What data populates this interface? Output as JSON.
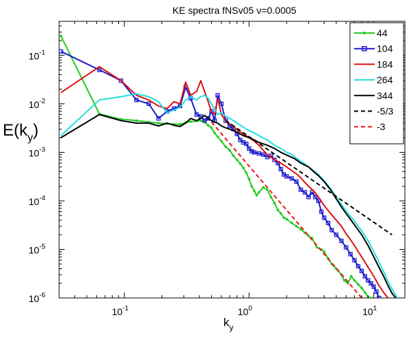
{
  "chart_data": {
    "type": "line",
    "title": "KE spectra fNSv05  ν=0.0005",
    "xlabel": "k",
    "xlabel_sub": "y",
    "ylabel": "E(k",
    "ylabel_sub": "y",
    "ylabel_tail": ")",
    "xscale": "log",
    "yscale": "log",
    "xlim": [
      0.03,
      17.78
    ],
    "ylim": [
      1e-06,
      0.5
    ],
    "xticks": [
      {
        "value": 0.1,
        "base": "10",
        "exp": "-1"
      },
      {
        "value": 1,
        "base": "10",
        "exp": "0"
      },
      {
        "value": 10,
        "base": "10",
        "exp": "1"
      }
    ],
    "yticks": [
      {
        "value": 1e-06,
        "base": "10",
        "exp": "-6"
      },
      {
        "value": 1e-05,
        "base": "10",
        "exp": "-5"
      },
      {
        "value": 0.0001,
        "base": "10",
        "exp": "-4"
      },
      {
        "value": 0.001,
        "base": "10",
        "exp": "-3"
      },
      {
        "value": 0.01,
        "base": "10",
        "exp": "-2"
      },
      {
        "value": 0.1,
        "base": "10",
        "exp": "-1"
      }
    ],
    "grid": false,
    "legend_position": "top-right",
    "series": [
      {
        "name": "44",
        "color": "#22cc22",
        "dash": "",
        "marker": "dot",
        "points": [
          [
            0.031,
            0.25
          ],
          [
            0.063,
            0.0062
          ],
          [
            0.094,
            0.0048
          ],
          [
            0.125,
            0.0045
          ],
          [
            0.157,
            0.0042
          ],
          [
            0.188,
            0.004
          ],
          [
            0.22,
            0.0039
          ],
          [
            0.25,
            0.0038
          ],
          [
            0.28,
            0.0038
          ],
          [
            0.31,
            0.0041
          ],
          [
            0.34,
            0.0043
          ],
          [
            0.38,
            0.0044
          ],
          [
            0.41,
            0.0045
          ],
          [
            0.44,
            0.0042
          ],
          [
            0.47,
            0.0036
          ],
          [
            0.5,
            0.0032
          ],
          [
            0.53,
            0.0025
          ],
          [
            0.56,
            0.0021
          ],
          [
            0.6,
            0.0017
          ],
          [
            0.65,
            0.0013
          ],
          [
            0.7,
            0.0011
          ],
          [
            0.75,
            0.00085
          ],
          [
            0.8,
            0.0007
          ],
          [
            0.85,
            0.00058
          ],
          [
            0.9,
            0.00048
          ],
          [
            0.95,
            0.00038
          ],
          [
            1.0,
            0.00028
          ],
          [
            1.05,
            0.0002
          ],
          [
            1.1,
            0.00016
          ],
          [
            1.15,
            0.00013
          ],
          [
            1.2,
            0.00015
          ],
          [
            1.3,
            0.00019
          ],
          [
            1.4,
            0.00017
          ],
          [
            1.5,
            0.00012
          ],
          [
            1.6,
            9e-05
          ],
          [
            1.7,
            6.5e-05
          ],
          [
            1.8,
            5.5e-05
          ],
          [
            1.9,
            4.5e-05
          ],
          [
            2.0,
            4.2e-05
          ],
          [
            2.2,
            3.5e-05
          ],
          [
            2.4,
            3e-05
          ],
          [
            2.6,
            2.6e-05
          ],
          [
            2.8,
            2.2e-05
          ],
          [
            3.0,
            1.9e-05
          ],
          [
            3.2,
            1.7e-05
          ],
          [
            3.5,
            1.1e-05
          ],
          [
            3.8,
            1e-05
          ],
          [
            4.0,
            9e-06
          ],
          [
            4.3,
            6.5e-06
          ],
          [
            4.6,
            5e-06
          ],
          [
            5.0,
            4e-06
          ],
          [
            5.5,
            3e-06
          ],
          [
            5.8,
            2.3e-06
          ],
          [
            6.2,
            2e-06
          ],
          [
            6.6,
            2.8e-06
          ],
          [
            7.0,
            2.3e-06
          ],
          [
            7.5,
            1.9e-06
          ],
          [
            8.0,
            1.6e-06
          ],
          [
            8.5,
            1.3e-06
          ],
          [
            9.0,
            1.05e-06
          ],
          [
            9.6,
            1e-06
          ]
        ]
      },
      {
        "name": "104",
        "color": "#1a1acc",
        "dash": "",
        "marker": "square",
        "points": [
          [
            0.031,
            0.12
          ],
          [
            0.063,
            0.05
          ],
          [
            0.094,
            0.03
          ],
          [
            0.125,
            0.012
          ],
          [
            0.157,
            0.01
          ],
          [
            0.188,
            0.005
          ],
          [
            0.22,
            0.007
          ],
          [
            0.25,
            0.008
          ],
          [
            0.28,
            0.009
          ],
          [
            0.31,
            0.022
          ],
          [
            0.34,
            0.013
          ],
          [
            0.38,
            0.006
          ],
          [
            0.41,
            0.0055
          ],
          [
            0.44,
            0.0045
          ],
          [
            0.47,
            0.005
          ],
          [
            0.5,
            0.007
          ],
          [
            0.53,
            0.0045
          ],
          [
            0.56,
            0.015
          ],
          [
            0.6,
            0.01
          ],
          [
            0.65,
            0.0045
          ],
          [
            0.7,
            0.0035
          ],
          [
            0.75,
            0.003
          ],
          [
            0.8,
            0.0024
          ],
          [
            0.85,
            0.0018
          ],
          [
            0.9,
            0.0016
          ],
          [
            0.95,
            0.0015
          ],
          [
            1.0,
            0.0012
          ],
          [
            1.05,
            0.00105
          ],
          [
            1.1,
            0.001
          ],
          [
            1.2,
            0.00095
          ],
          [
            1.3,
            0.0009
          ],
          [
            1.4,
            0.0008
          ],
          [
            1.5,
            0.00085
          ],
          [
            1.6,
            0.0007
          ],
          [
            1.7,
            0.0006
          ],
          [
            1.8,
            0.00045
          ],
          [
            1.9,
            0.00035
          ],
          [
            2.0,
            0.00032
          ],
          [
            2.2,
            0.00029
          ],
          [
            2.4,
            0.00025
          ],
          [
            2.6,
            0.00017
          ],
          [
            2.8,
            0.00015
          ],
          [
            3.0,
            0.00012
          ],
          [
            3.2,
            0.00015
          ],
          [
            3.4,
            0.00012
          ],
          [
            3.6,
            0.0001
          ],
          [
            3.8,
            6e-05
          ],
          [
            4.0,
            4.5e-05
          ],
          [
            4.3,
            3.5e-05
          ],
          [
            4.6,
            2.5e-05
          ],
          [
            5.0,
            2e-05
          ],
          [
            5.5,
            1.5e-05
          ],
          [
            6.0,
            1.1e-05
          ],
          [
            6.5,
            8e-06
          ],
          [
            7.0,
            6e-06
          ],
          [
            7.5,
            4.5e-06
          ],
          [
            8.0,
            3.6e-06
          ],
          [
            8.5,
            2.8e-06
          ],
          [
            9.0,
            2.3e-06
          ],
          [
            9.5,
            2e-06
          ],
          [
            10.0,
            1.7e-06
          ],
          [
            10.5,
            1.35e-06
          ],
          [
            11.0,
            1e-06
          ]
        ]
      },
      {
        "name": "184",
        "color": "#dd1111",
        "dash": "",
        "marker": "",
        "points": [
          [
            0.031,
            0.017
          ],
          [
            0.063,
            0.058
          ],
          [
            0.094,
            0.03
          ],
          [
            0.125,
            0.015
          ],
          [
            0.157,
            0.012
          ],
          [
            0.188,
            0.009
          ],
          [
            0.22,
            0.008
          ],
          [
            0.25,
            0.011
          ],
          [
            0.28,
            0.01
          ],
          [
            0.31,
            0.028
          ],
          [
            0.34,
            0.015
          ],
          [
            0.38,
            0.018
          ],
          [
            0.41,
            0.03
          ],
          [
            0.44,
            0.018
          ],
          [
            0.47,
            0.011
          ],
          [
            0.5,
            0.007
          ],
          [
            0.53,
            0.006
          ],
          [
            0.56,
            0.013
          ],
          [
            0.6,
            0.006
          ],
          [
            0.65,
            0.0045
          ],
          [
            0.7,
            0.0038
          ],
          [
            0.75,
            0.0034
          ],
          [
            0.8,
            0.0029
          ],
          [
            0.9,
            0.0024
          ],
          [
            1.0,
            0.002
          ],
          [
            1.1,
            0.0017
          ],
          [
            1.2,
            0.0014
          ],
          [
            1.3,
            0.0011
          ],
          [
            1.4,
            0.0009
          ],
          [
            1.5,
            0.0008
          ],
          [
            1.6,
            0.0007
          ],
          [
            1.8,
            0.0006
          ],
          [
            2.0,
            0.0005
          ],
          [
            2.2,
            0.00042
          ],
          [
            2.4,
            0.00036
          ],
          [
            2.6,
            0.0003
          ],
          [
            2.8,
            0.00024
          ],
          [
            3.0,
            0.0002
          ],
          [
            3.3,
            0.00016
          ],
          [
            3.6,
            0.00012
          ],
          [
            4.0,
            8e-05
          ],
          [
            4.5,
            5.5e-05
          ],
          [
            5.0,
            4e-05
          ],
          [
            5.5,
            3e-05
          ],
          [
            6.0,
            2.1e-05
          ],
          [
            6.5,
            1.6e-05
          ],
          [
            7.0,
            1.2e-05
          ],
          [
            7.5,
            9e-06
          ],
          [
            8.0,
            7e-06
          ],
          [
            8.5,
            5.5e-06
          ],
          [
            9.0,
            4.3e-06
          ],
          [
            10.0,
            2.8e-06
          ],
          [
            11.0,
            1.8e-06
          ],
          [
            12.0,
            1.3e-06
          ],
          [
            13.0,
            1e-06
          ]
        ]
      },
      {
        "name": "264",
        "color": "#22dddd",
        "dash": "",
        "marker": "",
        "points": [
          [
            0.031,
            0.0022
          ],
          [
            0.063,
            0.012
          ],
          [
            0.094,
            0.014
          ],
          [
            0.125,
            0.016
          ],
          [
            0.157,
            0.014
          ],
          [
            0.188,
            0.011
          ],
          [
            0.22,
            0.0065
          ],
          [
            0.25,
            0.0075
          ],
          [
            0.28,
            0.0085
          ],
          [
            0.31,
            0.012
          ],
          [
            0.34,
            0.014
          ],
          [
            0.38,
            0.012
          ],
          [
            0.41,
            0.014
          ],
          [
            0.44,
            0.015
          ],
          [
            0.47,
            0.013
          ],
          [
            0.5,
            0.01
          ],
          [
            0.53,
            0.008
          ],
          [
            0.56,
            0.006
          ],
          [
            0.6,
            0.0065
          ],
          [
            0.65,
            0.0055
          ],
          [
            0.7,
            0.005
          ],
          [
            0.75,
            0.0045
          ],
          [
            0.8,
            0.004
          ],
          [
            0.9,
            0.0033
          ],
          [
            1.0,
            0.0028
          ],
          [
            1.1,
            0.0025
          ],
          [
            1.2,
            0.0022
          ],
          [
            1.4,
            0.0018
          ],
          [
            1.6,
            0.0014
          ],
          [
            1.8,
            0.0012
          ],
          [
            2.0,
            0.001
          ],
          [
            2.2,
            0.0009
          ],
          [
            2.5,
            0.0007
          ],
          [
            2.8,
            0.00058
          ],
          [
            3.0,
            0.0005
          ],
          [
            3.3,
            0.00042
          ],
          [
            3.6,
            0.00035
          ],
          [
            4.0,
            0.00026
          ],
          [
            4.5,
            0.00018
          ],
          [
            5.0,
            0.00012
          ],
          [
            5.5,
            8.5e-05
          ],
          [
            6.0,
            6.2e-05
          ],
          [
            7.0,
            3.8e-05
          ],
          [
            8.0,
            2.4e-05
          ],
          [
            9.0,
            1.5e-05
          ],
          [
            10.0,
            9e-06
          ],
          [
            11.0,
            5.5e-06
          ],
          [
            12.0,
            3.5e-06
          ],
          [
            13.0,
            2.2e-06
          ],
          [
            14.5,
            1.3e-06
          ],
          [
            15.5,
            1e-06
          ]
        ]
      },
      {
        "name": "344",
        "color": "#000000",
        "dash": "",
        "marker": "",
        "points": [
          [
            0.031,
            0.002
          ],
          [
            0.063,
            0.006
          ],
          [
            0.094,
            0.0045
          ],
          [
            0.125,
            0.004
          ],
          [
            0.157,
            0.004
          ],
          [
            0.188,
            0.0035
          ],
          [
            0.22,
            0.004
          ],
          [
            0.25,
            0.0036
          ],
          [
            0.28,
            0.0034
          ],
          [
            0.31,
            0.004
          ],
          [
            0.34,
            0.005
          ],
          [
            0.38,
            0.0045
          ],
          [
            0.41,
            0.005
          ],
          [
            0.44,
            0.0058
          ],
          [
            0.47,
            0.005
          ],
          [
            0.5,
            0.0045
          ],
          [
            0.53,
            0.0042
          ],
          [
            0.56,
            0.004
          ],
          [
            0.6,
            0.0035
          ],
          [
            0.65,
            0.0032
          ],
          [
            0.7,
            0.003
          ],
          [
            0.75,
            0.0028
          ],
          [
            0.8,
            0.0026
          ],
          [
            0.9,
            0.0022
          ],
          [
            1.0,
            0.002
          ],
          [
            1.1,
            0.0018
          ],
          [
            1.2,
            0.0016
          ],
          [
            1.4,
            0.0014
          ],
          [
            1.6,
            0.0012
          ],
          [
            1.8,
            0.001
          ],
          [
            2.0,
            0.00088
          ],
          [
            2.3,
            0.00075
          ],
          [
            2.6,
            0.0006
          ],
          [
            3.0,
            0.0005
          ],
          [
            3.3,
            0.0004
          ],
          [
            3.6,
            0.00033
          ],
          [
            4.0,
            0.00025
          ],
          [
            4.5,
            0.00017
          ],
          [
            5.0,
            0.00011
          ],
          [
            5.5,
            7.5e-05
          ],
          [
            6.0,
            5.5e-05
          ],
          [
            7.0,
            3.2e-05
          ],
          [
            8.0,
            2e-05
          ],
          [
            9.0,
            1.2e-05
          ],
          [
            10.0,
            7e-06
          ],
          [
            11.0,
            4.3e-06
          ],
          [
            12.0,
            2.8e-06
          ],
          [
            13.0,
            1.8e-06
          ],
          [
            14.0,
            1.25e-06
          ],
          [
            15.0,
            1e-06
          ]
        ]
      },
      {
        "name": "-5/3",
        "color": "#000000",
        "dash": "6,4",
        "marker": "",
        "points": [
          [
            0.65,
            0.0045
          ],
          [
            14.0,
            2e-05
          ]
        ]
      },
      {
        "name": "-3",
        "color": "#ee1111",
        "dash": "6,4",
        "marker": "",
        "points": [
          [
            0.5,
            0.0042
          ],
          [
            8.0,
            1e-06
          ]
        ]
      }
    ]
  }
}
